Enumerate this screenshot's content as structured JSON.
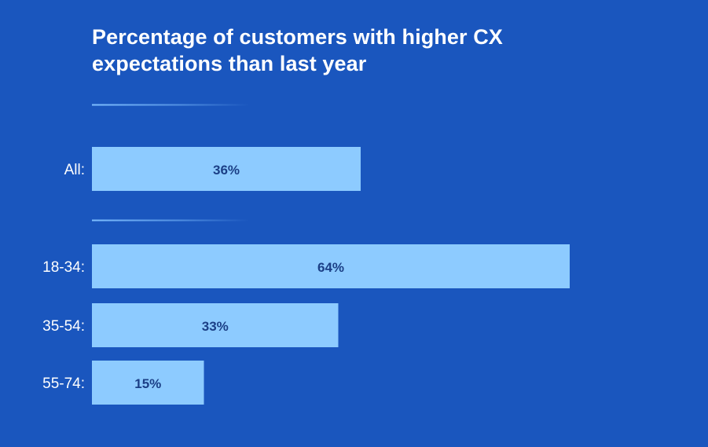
{
  "colors": {
    "background": "#1a56be",
    "bar": "#8dcbff",
    "bar_label": "#1b3f86",
    "category_label": "#ffffff",
    "divider": "#7fbfff"
  },
  "chart_data": {
    "type": "bar",
    "orientation": "horizontal",
    "title": "Percentage of customers with higher CX expectations than last year",
    "title_lines": [
      "Percentage of customers with higher CX",
      "expectations than last year"
    ],
    "categories": [
      "All:",
      "18-34:",
      "35-54:",
      "55-74:"
    ],
    "values": [
      36,
      64,
      33,
      15
    ],
    "value_labels": [
      "36%",
      "64%",
      "33%",
      "15%"
    ],
    "groups": [
      [
        "All:"
      ],
      [
        "18-34:",
        "35-54:",
        "55-74:"
      ]
    ],
    "xlabel": "",
    "ylabel": "",
    "xlim": [
      0,
      100
    ],
    "unit": "%",
    "grid": false,
    "legend": "none"
  }
}
